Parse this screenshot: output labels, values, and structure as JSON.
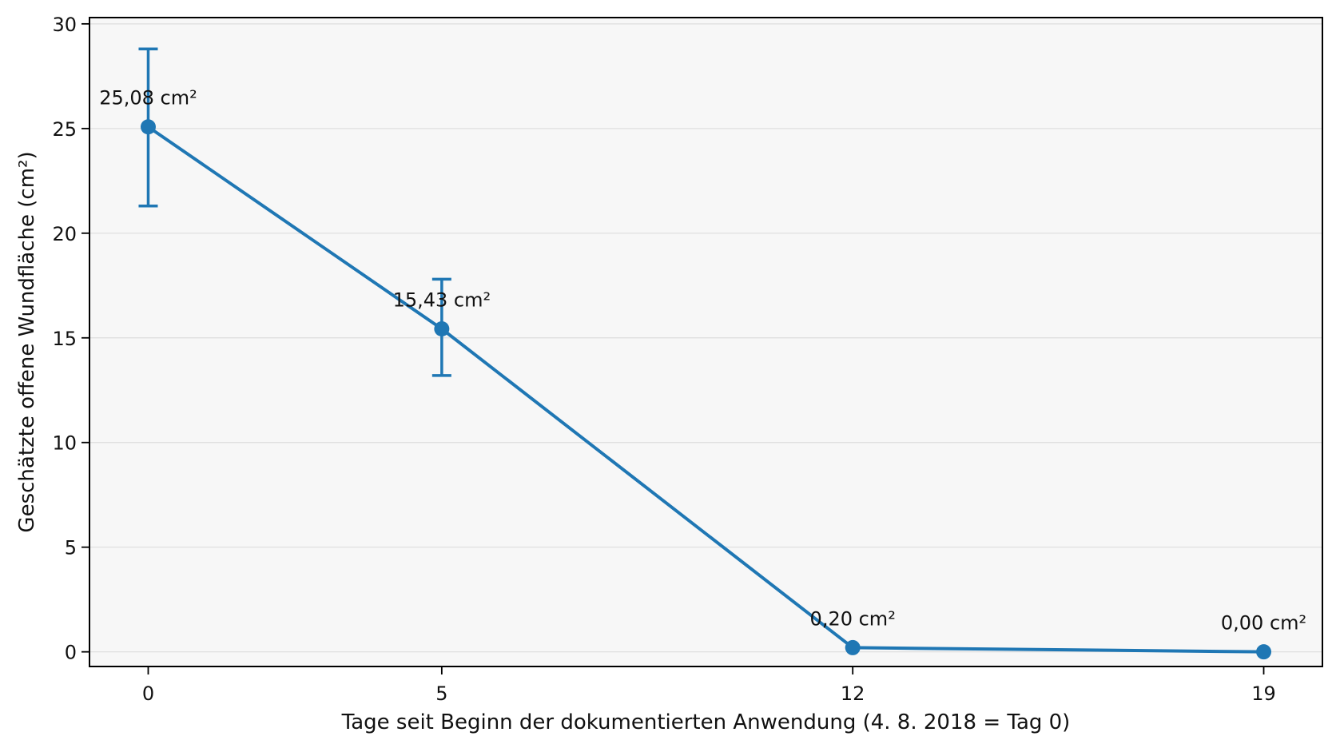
{
  "chart_data": {
    "type": "line",
    "title": "",
    "xlabel": "Tage seit Beginn der dokumentierten Anwendung (4. 8. 2018 = Tag 0)",
    "ylabel": "Geschätzte offene Wundfläche (cm²)",
    "x_ticks": [
      0,
      5,
      12,
      19
    ],
    "y_ticks": [
      0,
      5,
      10,
      15,
      20,
      25,
      30
    ],
    "xlim": [
      -1,
      20
    ],
    "ylim": [
      -0.7,
      30.3
    ],
    "grid": "horizontal",
    "legend": "none",
    "series": [
      {
        "color": "#1f77b4",
        "points": [
          {
            "x": 0,
            "y": 25.08,
            "err_low": 21.3,
            "err_high": 28.8,
            "label": "25,08 cm²"
          },
          {
            "x": 5,
            "y": 15.43,
            "err_low": 13.2,
            "err_high": 17.8,
            "label": "15,43 cm²"
          },
          {
            "x": 12,
            "y": 0.2,
            "label": "0,20 cm²"
          },
          {
            "x": 19,
            "y": 0.0,
            "label": "0,00 cm²"
          }
        ]
      }
    ],
    "colors": {
      "line": "#1f77b4",
      "plot_background": "#f7f7f7",
      "grid": "#dddddd",
      "frame": "#000000"
    }
  }
}
